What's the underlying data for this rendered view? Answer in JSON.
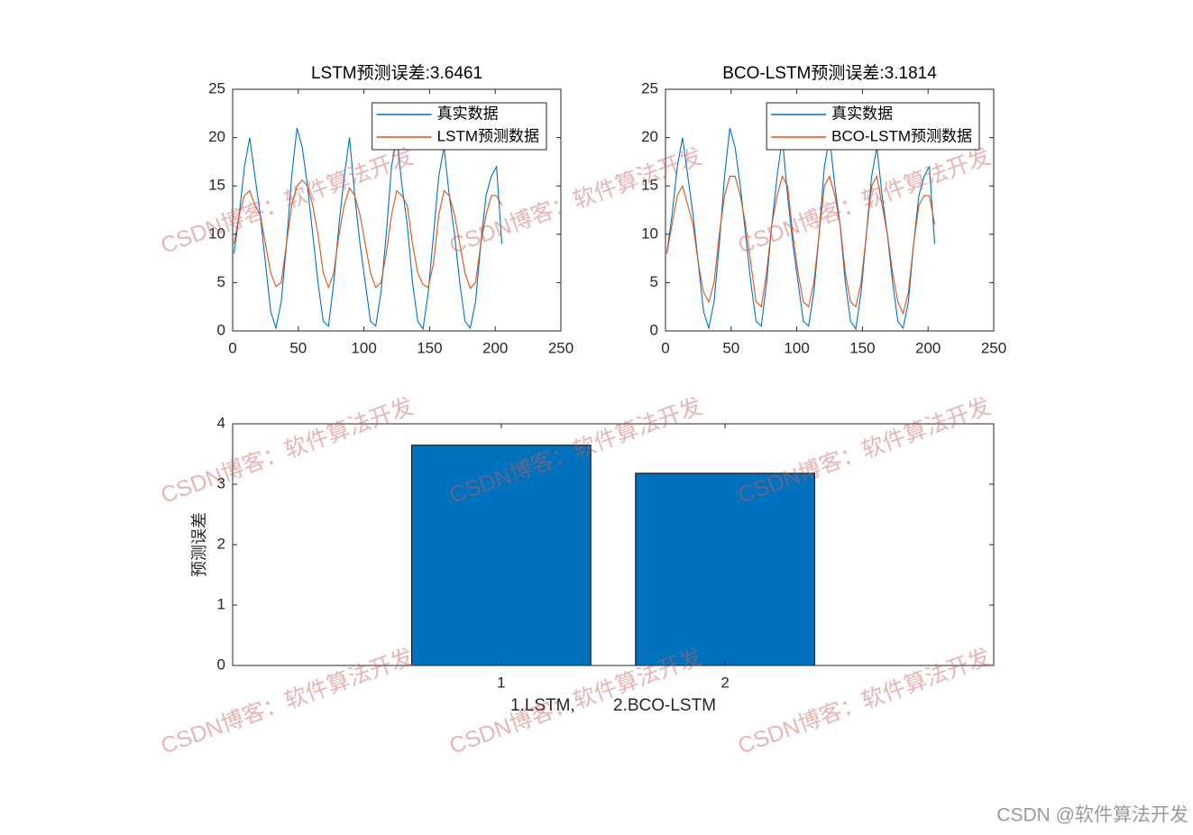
{
  "chart_data": [
    {
      "type": "line",
      "title": "LSTM预测误差:3.6461",
      "x": [
        1,
        5,
        9,
        13,
        17,
        21,
        25,
        29,
        33,
        37,
        41,
        45,
        49,
        53,
        57,
        61,
        65,
        69,
        73,
        77,
        81,
        85,
        89,
        93,
        97,
        101,
        105,
        109,
        113,
        117,
        121,
        125,
        129,
        133,
        137,
        141,
        145,
        149,
        153,
        157,
        161,
        165,
        169,
        173,
        177,
        181,
        185,
        189,
        193,
        197,
        201,
        205
      ],
      "series": [
        {
          "name": "真实数据",
          "color": "#0072BD",
          "values": [
            8,
            12,
            17,
            20,
            16,
            12,
            7,
            2,
            0.3,
            3,
            9,
            16,
            21,
            19,
            15,
            10,
            5,
            1,
            0.5,
            5,
            11,
            16,
            20,
            14,
            9,
            5,
            1,
            0.5,
            4,
            10,
            17,
            20,
            15,
            11,
            5,
            1,
            0.2,
            4,
            10,
            16,
            19,
            14,
            10,
            5,
            1,
            0.3,
            3,
            9,
            14,
            16,
            17,
            9
          ]
        },
        {
          "name": "LSTM预测数据",
          "color": "#D95319",
          "values": [
            9,
            12,
            14,
            14.5,
            13,
            12,
            9,
            6,
            4.6,
            5,
            9,
            13,
            15,
            15.6,
            15,
            13,
            10,
            6,
            4.5,
            6,
            10,
            13,
            14.8,
            14,
            12,
            9,
            6,
            4.5,
            5,
            8,
            12,
            14.5,
            14,
            13,
            9,
            6,
            4.8,
            4.5,
            7,
            12,
            14.5,
            14,
            12,
            9,
            6,
            4.4,
            5,
            9,
            12,
            14,
            14,
            13
          ]
        }
      ],
      "xlim": [
        0,
        250
      ],
      "xticks": [
        0,
        50,
        100,
        150,
        200,
        250
      ],
      "ylim": [
        0,
        25
      ],
      "yticks": [
        0,
        5,
        10,
        15,
        20,
        25
      ],
      "legend": "northeast"
    },
    {
      "type": "line",
      "title": "BCO-LSTM预测误差:3.1814",
      "x": [
        1,
        5,
        9,
        13,
        17,
        21,
        25,
        29,
        33,
        37,
        41,
        45,
        49,
        53,
        57,
        61,
        65,
        69,
        73,
        77,
        81,
        85,
        89,
        93,
        97,
        101,
        105,
        109,
        113,
        117,
        121,
        125,
        129,
        133,
        137,
        141,
        145,
        149,
        153,
        157,
        161,
        165,
        169,
        173,
        177,
        181,
        185,
        189,
        193,
        197,
        201,
        205
      ],
      "series": [
        {
          "name": "真实数据",
          "color": "#0072BD",
          "values": [
            8,
            12,
            17,
            20,
            16,
            12,
            7,
            2,
            0.3,
            3,
            9,
            16,
            21,
            19,
            15,
            10,
            5,
            1,
            0.5,
            5,
            11,
            16,
            20,
            14,
            9,
            5,
            1,
            0.5,
            4,
            10,
            17,
            20,
            15,
            11,
            5,
            1,
            0.2,
            4,
            10,
            16,
            19,
            14,
            10,
            5,
            1,
            0.3,
            3,
            9,
            14,
            16,
            17,
            9
          ]
        },
        {
          "name": "BCO-LSTM预测数据",
          "color": "#D95319",
          "values": [
            8,
            11,
            14,
            15,
            13,
            11,
            7,
            4,
            3,
            5,
            10,
            14,
            16,
            16,
            14,
            11,
            7,
            3,
            2.5,
            6,
            11,
            14,
            16,
            15,
            10,
            6,
            3,
            2.5,
            5,
            10,
            15,
            16,
            14,
            11,
            6,
            3,
            2.5,
            5,
            10,
            15,
            16,
            13,
            10,
            6,
            3,
            1.8,
            4,
            9,
            13,
            14,
            14,
            11
          ]
        }
      ],
      "xlim": [
        0,
        250
      ],
      "xticks": [
        0,
        50,
        100,
        150,
        200,
        250
      ],
      "ylim": [
        0,
        25
      ],
      "yticks": [
        0,
        5,
        10,
        15,
        20,
        25
      ],
      "legend": "northeast"
    },
    {
      "type": "bar",
      "x": [
        1,
        2
      ],
      "values": [
        3.6461,
        3.1814
      ],
      "color": "#0072BD",
      "xlabel": "1.LSTM,        2.BCO-LSTM",
      "ylabel": "预测误差",
      "xlim": [
        -0.2,
        3.2
      ],
      "xticks": [
        1,
        2
      ],
      "ylim": [
        0,
        4
      ],
      "yticks": [
        0,
        1,
        2,
        3,
        4
      ]
    }
  ],
  "watermark": "CSDN博客：软件算法开发",
  "footer": "CSDN @软件算法开发"
}
